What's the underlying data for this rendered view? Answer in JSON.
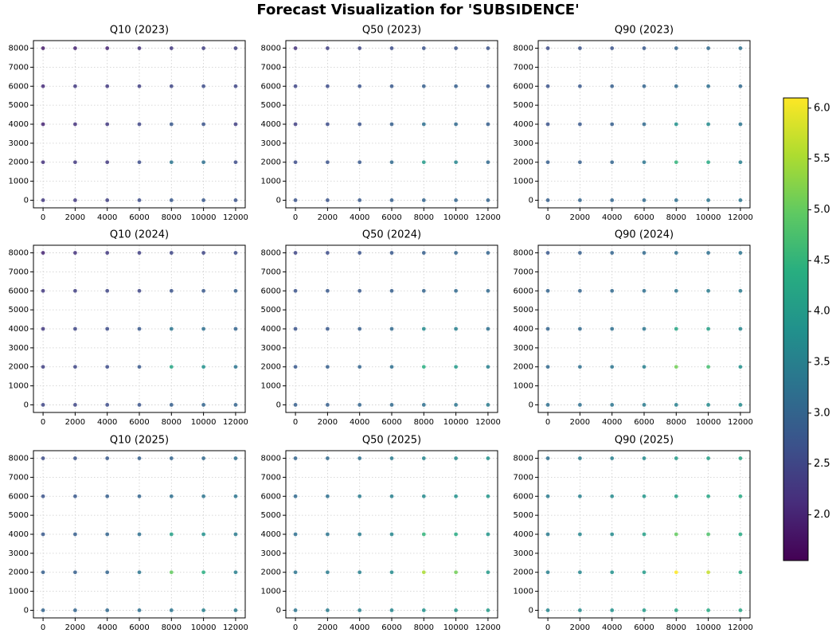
{
  "title": "Forecast Visualization for 'SUBSIDENCE'",
  "colorbar": {
    "colormap": "viridis",
    "clim": [
      1.55,
      6.1
    ],
    "ticks": [
      {
        "value": 2,
        "label": "2.0"
      },
      {
        "value": 2.5,
        "label": "2.5"
      },
      {
        "value": 3,
        "label": "3.0"
      },
      {
        "value": 3.5,
        "label": "3.5"
      },
      {
        "value": 4,
        "label": "4.0"
      },
      {
        "value": 4.5,
        "label": "4.5"
      },
      {
        "value": 5,
        "label": "5.0"
      },
      {
        "value": 5.5,
        "label": "5.5"
      },
      {
        "value": 6,
        "label": "6.0"
      }
    ]
  },
  "chart_data": [
    {
      "type": "scatter",
      "title": "Q10 (2023)",
      "grid": true,
      "xlim": [
        -600,
        12600
      ],
      "ylim": [
        -400,
        8400
      ],
      "xticks": [
        0,
        2000,
        4000,
        6000,
        8000,
        10000,
        12000
      ],
      "yticks": [
        0,
        1000,
        2000,
        3000,
        4000,
        5000,
        6000,
        7000,
        8000
      ],
      "x": [
        0,
        2000,
        4000,
        6000,
        8000,
        10000,
        12000,
        0,
        2000,
        4000,
        6000,
        8000,
        10000,
        12000,
        0,
        2000,
        4000,
        6000,
        8000,
        10000,
        12000,
        0,
        2000,
        4000,
        6000,
        8000,
        10000,
        12000,
        0,
        2000,
        4000,
        6000,
        8000,
        10000,
        12000
      ],
      "y": [
        0,
        0,
        0,
        0,
        0,
        0,
        0,
        2000,
        2000,
        2000,
        2000,
        2000,
        2000,
        2000,
        4000,
        4000,
        4000,
        4000,
        4000,
        4000,
        4000,
        6000,
        6000,
        6000,
        6000,
        6000,
        6000,
        6000,
        8000,
        8000,
        8000,
        8000,
        8000,
        8000,
        8000
      ],
      "values": [
        2.3,
        2.3,
        2.4,
        2.6,
        2.8,
        2.8,
        2.7,
        2.2,
        2.3,
        2.3,
        2.6,
        3.3,
        3.2,
        2.6,
        2.0,
        2.2,
        2.3,
        2.5,
        2.8,
        2.7,
        2.4,
        2.1,
        2.3,
        2.3,
        2.4,
        2.5,
        2.6,
        2.5,
        1.9,
        2.0,
        2.0,
        2.2,
        2.3,
        2.4,
        2.4
      ]
    },
    {
      "type": "scatter",
      "title": "Q50 (2023)",
      "grid": true,
      "xlim": [
        -600,
        12600
      ],
      "ylim": [
        -400,
        8400
      ],
      "xticks": [
        0,
        2000,
        4000,
        6000,
        8000,
        10000,
        12000
      ],
      "yticks": [
        0,
        1000,
        2000,
        3000,
        4000,
        5000,
        6000,
        7000,
        8000
      ],
      "x": [
        0,
        2000,
        4000,
        6000,
        8000,
        10000,
        12000,
        0,
        2000,
        4000,
        6000,
        8000,
        10000,
        12000,
        0,
        2000,
        4000,
        6000,
        8000,
        10000,
        12000,
        0,
        2000,
        4000,
        6000,
        8000,
        10000,
        12000,
        0,
        2000,
        4000,
        6000,
        8000,
        10000,
        12000
      ],
      "y": [
        0,
        0,
        0,
        0,
        0,
        0,
        0,
        2000,
        2000,
        2000,
        2000,
        2000,
        2000,
        2000,
        4000,
        4000,
        4000,
        4000,
        4000,
        4000,
        4000,
        6000,
        6000,
        6000,
        6000,
        6000,
        6000,
        6000,
        8000,
        8000,
        8000,
        8000,
        8000,
        8000,
        8000
      ],
      "values": [
        2.7,
        2.7,
        2.8,
        2.9,
        3.0,
        3.0,
        3.0,
        2.6,
        2.7,
        2.8,
        3.1,
        4.0,
        3.6,
        3.1,
        2.4,
        2.6,
        2.7,
        2.9,
        3.2,
        3.1,
        2.9,
        2.5,
        2.6,
        2.7,
        2.8,
        2.9,
        2.9,
        2.8,
        2.2,
        2.4,
        2.5,
        2.6,
        2.7,
        2.7,
        2.7
      ]
    },
    {
      "type": "scatter",
      "title": "Q90 (2023)",
      "grid": true,
      "xlim": [
        -600,
        12600
      ],
      "ylim": [
        -400,
        8400
      ],
      "xticks": [
        0,
        2000,
        4000,
        6000,
        8000,
        10000,
        12000
      ],
      "yticks": [
        0,
        1000,
        2000,
        3000,
        4000,
        5000,
        6000,
        7000,
        8000
      ],
      "x": [
        0,
        2000,
        4000,
        6000,
        8000,
        10000,
        12000,
        0,
        2000,
        4000,
        6000,
        8000,
        10000,
        12000,
        0,
        2000,
        4000,
        6000,
        8000,
        10000,
        12000,
        0,
        2000,
        4000,
        6000,
        8000,
        10000,
        12000,
        0,
        2000,
        4000,
        6000,
        8000,
        10000,
        12000
      ],
      "y": [
        0,
        0,
        0,
        0,
        0,
        0,
        0,
        2000,
        2000,
        2000,
        2000,
        2000,
        2000,
        2000,
        4000,
        4000,
        4000,
        4000,
        4000,
        4000,
        4000,
        6000,
        6000,
        6000,
        6000,
        6000,
        6000,
        6000,
        8000,
        8000,
        8000,
        8000,
        8000,
        8000,
        8000
      ],
      "values": [
        2.9,
        3.0,
        3.0,
        3.1,
        3.2,
        3.3,
        3.3,
        2.9,
        2.9,
        3.0,
        3.3,
        4.5,
        4.3,
        3.5,
        2.7,
        2.8,
        2.9,
        3.1,
        3.8,
        3.7,
        3.3,
        2.7,
        2.8,
        2.9,
        3.0,
        3.1,
        3.2,
        3.1,
        2.6,
        2.7,
        2.7,
        2.8,
        3.0,
        3.1,
        3.2
      ]
    },
    {
      "type": "scatter",
      "title": "Q10 (2024)",
      "grid": true,
      "xlim": [
        -600,
        12600
      ],
      "ylim": [
        -400,
        8400
      ],
      "xticks": [
        0,
        2000,
        4000,
        6000,
        8000,
        10000,
        12000
      ],
      "yticks": [
        0,
        1000,
        2000,
        3000,
        4000,
        5000,
        6000,
        7000,
        8000
      ],
      "x": [
        0,
        2000,
        4000,
        6000,
        8000,
        10000,
        12000,
        0,
        2000,
        4000,
        6000,
        8000,
        10000,
        12000,
        0,
        2000,
        4000,
        6000,
        8000,
        10000,
        12000,
        0,
        2000,
        4000,
        6000,
        8000,
        10000,
        12000,
        0,
        2000,
        4000,
        6000,
        8000,
        10000,
        12000
      ],
      "y": [
        0,
        0,
        0,
        0,
        0,
        0,
        0,
        2000,
        2000,
        2000,
        2000,
        2000,
        2000,
        2000,
        4000,
        4000,
        4000,
        4000,
        4000,
        4000,
        4000,
        6000,
        6000,
        6000,
        6000,
        6000,
        6000,
        6000,
        8000,
        8000,
        8000,
        8000,
        8000,
        8000,
        8000
      ],
      "values": [
        2.5,
        2.5,
        2.6,
        2.7,
        2.9,
        3.0,
        3.0,
        2.4,
        2.5,
        2.6,
        2.8,
        4.2,
        3.8,
        3.3,
        2.3,
        2.5,
        2.6,
        2.8,
        3.3,
        3.2,
        3.0,
        2.3,
        2.4,
        2.5,
        2.5,
        2.7,
        2.8,
        2.9,
        2.0,
        2.2,
        2.3,
        2.4,
        2.5,
        2.5,
        2.6
      ]
    },
    {
      "type": "scatter",
      "title": "Q50 (2024)",
      "grid": true,
      "xlim": [
        -600,
        12600
      ],
      "ylim": [
        -400,
        8400
      ],
      "xticks": [
        0,
        2000,
        4000,
        6000,
        8000,
        10000,
        12000
      ],
      "yticks": [
        0,
        1000,
        2000,
        3000,
        4000,
        5000,
        6000,
        7000,
        8000
      ],
      "x": [
        0,
        2000,
        4000,
        6000,
        8000,
        10000,
        12000,
        0,
        2000,
        4000,
        6000,
        8000,
        10000,
        12000,
        0,
        2000,
        4000,
        6000,
        8000,
        10000,
        12000,
        0,
        2000,
        4000,
        6000,
        8000,
        10000,
        12000,
        0,
        2000,
        4000,
        6000,
        8000,
        10000,
        12000
      ],
      "y": [
        0,
        0,
        0,
        0,
        0,
        0,
        0,
        2000,
        2000,
        2000,
        2000,
        2000,
        2000,
        2000,
        4000,
        4000,
        4000,
        4000,
        4000,
        4000,
        4000,
        6000,
        6000,
        6000,
        6000,
        6000,
        6000,
        6000,
        8000,
        8000,
        8000,
        8000,
        8000,
        8000,
        8000
      ],
      "values": [
        2.9,
        2.9,
        3.0,
        3.1,
        3.2,
        3.3,
        3.4,
        2.8,
        2.9,
        3.0,
        3.2,
        4.4,
        4.0,
        3.5,
        2.7,
        2.8,
        2.9,
        3.1,
        3.7,
        3.5,
        3.2,
        2.7,
        2.8,
        2.8,
        2.9,
        3.0,
        3.1,
        3.1,
        2.5,
        2.6,
        2.7,
        2.8,
        2.9,
        3.0,
        3.0
      ]
    },
    {
      "type": "scatter",
      "title": "Q90 (2024)",
      "grid": true,
      "xlim": [
        -600,
        12600
      ],
      "ylim": [
        -400,
        8400
      ],
      "xticks": [
        0,
        2000,
        4000,
        6000,
        8000,
        10000,
        12000
      ],
      "yticks": [
        0,
        1000,
        2000,
        3000,
        4000,
        5000,
        6000,
        7000,
        8000
      ],
      "x": [
        0,
        2000,
        4000,
        6000,
        8000,
        10000,
        12000,
        0,
        2000,
        4000,
        6000,
        8000,
        10000,
        12000,
        0,
        2000,
        4000,
        6000,
        8000,
        10000,
        12000,
        0,
        2000,
        4000,
        6000,
        8000,
        10000,
        12000,
        0,
        2000,
        4000,
        6000,
        8000,
        10000,
        12000
      ],
      "y": [
        0,
        0,
        0,
        0,
        0,
        0,
        0,
        2000,
        2000,
        2000,
        2000,
        2000,
        2000,
        2000,
        4000,
        4000,
        4000,
        4000,
        4000,
        4000,
        4000,
        6000,
        6000,
        6000,
        6000,
        6000,
        6000,
        6000,
        8000,
        8000,
        8000,
        8000,
        8000,
        8000,
        8000
      ],
      "values": [
        3.2,
        3.2,
        3.3,
        3.4,
        3.5,
        3.7,
        3.7,
        3.1,
        3.2,
        3.3,
        3.5,
        5.1,
        4.7,
        3.8,
        3.0,
        3.1,
        3.2,
        3.3,
        4.2,
        4.1,
        3.6,
        3.0,
        3.0,
        3.1,
        3.2,
        3.3,
        3.4,
        3.4,
        2.8,
        2.9,
        3.0,
        3.1,
        3.2,
        3.2,
        3.3
      ]
    },
    {
      "type": "scatter",
      "title": "Q10 (2025)",
      "grid": true,
      "xlim": [
        -600,
        12600
      ],
      "ylim": [
        -400,
        8400
      ],
      "xticks": [
        0,
        2000,
        4000,
        6000,
        8000,
        10000,
        12000
      ],
      "yticks": [
        0,
        1000,
        2000,
        3000,
        4000,
        5000,
        6000,
        7000,
        8000
      ],
      "x": [
        0,
        2000,
        4000,
        6000,
        8000,
        10000,
        12000,
        0,
        2000,
        4000,
        6000,
        8000,
        10000,
        12000,
        0,
        2000,
        4000,
        6000,
        8000,
        10000,
        12000,
        0,
        2000,
        4000,
        6000,
        8000,
        10000,
        12000,
        0,
        2000,
        4000,
        6000,
        8000,
        10000,
        12000
      ],
      "y": [
        0,
        0,
        0,
        0,
        0,
        0,
        0,
        2000,
        2000,
        2000,
        2000,
        2000,
        2000,
        2000,
        4000,
        4000,
        4000,
        4000,
        4000,
        4000,
        4000,
        6000,
        6000,
        6000,
        6000,
        6000,
        6000,
        6000,
        8000,
        8000,
        8000,
        8000,
        8000,
        8000,
        8000
      ],
      "values": [
        3.0,
        3.0,
        3.1,
        3.2,
        3.3,
        3.5,
        3.4,
        2.9,
        2.9,
        3.0,
        3.3,
        5.0,
        4.4,
        3.5,
        2.8,
        2.9,
        3.0,
        3.2,
        4.1,
        3.8,
        3.4,
        2.7,
        2.8,
        2.9,
        3.0,
        3.2,
        3.3,
        3.3,
        2.6,
        2.7,
        2.8,
        2.9,
        3.0,
        3.1,
        3.2
      ]
    },
    {
      "type": "scatter",
      "title": "Q50 (2025)",
      "grid": true,
      "xlim": [
        -600,
        12600
      ],
      "ylim": [
        -400,
        8400
      ],
      "xticks": [
        0,
        2000,
        4000,
        6000,
        8000,
        10000,
        12000
      ],
      "yticks": [
        0,
        1000,
        2000,
        3000,
        4000,
        5000,
        6000,
        7000,
        8000
      ],
      "x": [
        0,
        2000,
        4000,
        6000,
        8000,
        10000,
        12000,
        0,
        2000,
        4000,
        6000,
        8000,
        10000,
        12000,
        0,
        2000,
        4000,
        6000,
        8000,
        10000,
        12000,
        0,
        2000,
        4000,
        6000,
        8000,
        10000,
        12000,
        0,
        2000,
        4000,
        6000,
        8000,
        10000,
        12000
      ],
      "y": [
        0,
        0,
        0,
        0,
        0,
        0,
        0,
        2000,
        2000,
        2000,
        2000,
        2000,
        2000,
        2000,
        4000,
        4000,
        4000,
        4000,
        4000,
        4000,
        4000,
        6000,
        6000,
        6000,
        6000,
        6000,
        6000,
        6000,
        8000,
        8000,
        8000,
        8000,
        8000,
        8000,
        8000
      ],
      "values": [
        3.3,
        3.4,
        3.5,
        3.6,
        3.8,
        3.9,
        4.0,
        3.3,
        3.4,
        3.5,
        3.7,
        5.5,
        5.1,
        4.0,
        3.2,
        3.3,
        3.4,
        3.6,
        4.5,
        4.3,
        3.9,
        3.1,
        3.2,
        3.4,
        3.5,
        3.7,
        3.8,
        3.9,
        3.0,
        3.1,
        3.2,
        3.4,
        3.6,
        3.7,
        3.8
      ]
    },
    {
      "type": "scatter",
      "title": "Q90 (2025)",
      "grid": true,
      "xlim": [
        -600,
        12600
      ],
      "ylim": [
        -400,
        8400
      ],
      "xticks": [
        0,
        2000,
        4000,
        6000,
        8000,
        10000,
        12000
      ],
      "yticks": [
        0,
        1000,
        2000,
        3000,
        4000,
        5000,
        6000,
        7000,
        8000
      ],
      "x": [
        0,
        2000,
        4000,
        6000,
        8000,
        10000,
        12000,
        0,
        2000,
        4000,
        6000,
        8000,
        10000,
        12000,
        0,
        2000,
        4000,
        6000,
        8000,
        10000,
        12000,
        0,
        2000,
        4000,
        6000,
        8000,
        10000,
        12000,
        0,
        2000,
        4000,
        6000,
        8000,
        10000,
        12000
      ],
      "y": [
        0,
        0,
        0,
        0,
        0,
        0,
        0,
        2000,
        2000,
        2000,
        2000,
        2000,
        2000,
        2000,
        4000,
        4000,
        4000,
        4000,
        4000,
        4000,
        4000,
        6000,
        6000,
        6000,
        6000,
        6000,
        6000,
        6000,
        8000,
        8000,
        8000,
        8000,
        8000,
        8000,
        8000
      ],
      "values": [
        3.6,
        3.7,
        3.8,
        4.0,
        4.2,
        4.3,
        4.2,
        3.5,
        3.6,
        3.8,
        4.0,
        6.1,
        5.7,
        4.3,
        3.4,
        3.6,
        3.7,
        4.1,
        5.0,
        4.8,
        4.3,
        3.4,
        3.5,
        3.7,
        3.9,
        4.1,
        4.2,
        4.3,
        3.2,
        3.4,
        3.5,
        3.7,
        4.0,
        4.1,
        4.2
      ]
    }
  ]
}
